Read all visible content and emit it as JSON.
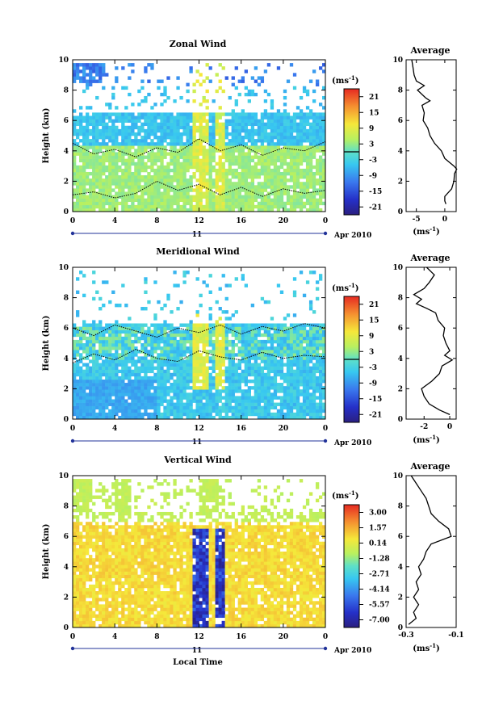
{
  "chart_data": [
    {
      "type": "heatmap",
      "title": "Zonal Wind",
      "ylabel": "Height (km)",
      "xlim": [
        0,
        24
      ],
      "ylim": [
        0,
        10
      ],
      "x_ticks": [
        "0",
        "4",
        "8",
        "12",
        "16",
        "20",
        "0"
      ],
      "y_ticks": [
        "0",
        "2",
        "4",
        "6",
        "8",
        "10"
      ],
      "date_label": "11",
      "date_suffix": "Apr 2010",
      "colorbar": {
        "unit": "(ms",
        "unit_sup": "-1",
        "unit_close": ")",
        "ticks": [
          "21",
          "15",
          "9",
          "3",
          "-3",
          "-9",
          "-15",
          "-21"
        ],
        "range": [
          -24,
          24
        ],
        "zero_line": true
      },
      "average_profile": {
        "title": "Average",
        "xlabel": "(ms",
        "xlabel_sup": "-1",
        "xlabel_close": ")",
        "x_ticks": [
          "-5",
          "0"
        ],
        "xlim": [
          -6.8,
          2.0
        ],
        "heights": [
          0.5,
          0.7,
          1.0,
          1.5,
          2.0,
          2.5,
          2.8,
          3.0,
          3.5,
          4.0,
          4.5,
          5.0,
          5.5,
          6.0,
          6.5,
          7.0,
          7.3,
          7.5,
          8.0,
          8.3,
          8.6,
          9.0,
          9.5,
          10.0
        ],
        "values": [
          0.2,
          0.0,
          0.0,
          1.2,
          1.6,
          1.7,
          2.1,
          1.6,
          0.0,
          -0.6,
          -1.8,
          -2.6,
          -3.0,
          -3.8,
          -3.6,
          -4.0,
          -2.6,
          -3.4,
          -4.8,
          -3.6,
          -5.0,
          -5.4,
          -5.6,
          -5.8
        ]
      },
      "contours": [
        {
          "level": 0,
          "heights": [
            4.5,
            3.8,
            4.1,
            3.6,
            4.2,
            3.9,
            4.8,
            4.0,
            4.4,
            3.7,
            4.2,
            4.0,
            4.6
          ]
        },
        {
          "level": 0,
          "heights": [
            1.1,
            1.3,
            0.9,
            1.2,
            2.0,
            1.4,
            1.8,
            1.1,
            1.6,
            1.0,
            1.5,
            1.2,
            1.4
          ]
        }
      ]
    },
    {
      "type": "heatmap",
      "title": "Meridional Wind",
      "ylabel": "Height (km)",
      "xlim": [
        0,
        24
      ],
      "ylim": [
        0,
        10
      ],
      "x_ticks": [
        "0",
        "4",
        "8",
        "12",
        "16",
        "20",
        "0"
      ],
      "y_ticks": [
        "0",
        "2",
        "4",
        "6",
        "8",
        "10"
      ],
      "date_label": "11",
      "date_suffix": "Apr 2010",
      "colorbar": {
        "unit": "(ms",
        "unit_sup": "-1",
        "unit_close": ")",
        "ticks": [
          "21",
          "15",
          "9",
          "3",
          "-3",
          "-9",
          "-15",
          "-21"
        ],
        "range": [
          -24,
          24
        ],
        "zero_line": true
      },
      "average_profile": {
        "title": "Average",
        "xlabel": "(ms",
        "xlabel_sup": "-1",
        "xlabel_close": ")",
        "x_ticks": [
          "-2",
          "0"
        ],
        "xlim": [
          -3.4,
          0.5
        ],
        "heights": [
          0.3,
          0.6,
          1.0,
          1.5,
          2.0,
          2.5,
          3.0,
          3.5,
          3.9,
          4.2,
          4.5,
          5.0,
          5.5,
          6.0,
          6.5,
          7.0,
          7.3,
          7.6,
          7.9,
          8.2,
          8.6,
          9.0,
          9.5,
          10.0
        ],
        "values": [
          0.0,
          -0.8,
          -1.6,
          -2.0,
          -2.2,
          -1.4,
          -0.8,
          -0.6,
          0.2,
          -0.4,
          0.0,
          -0.3,
          -0.5,
          -0.4,
          -0.9,
          -1.1,
          -1.8,
          -2.6,
          -2.2,
          -2.8,
          -2.0,
          -1.6,
          -1.2,
          -1.8
        ]
      },
      "contours": [
        {
          "level": 0,
          "heights": [
            6.0,
            5.5,
            6.2,
            5.8,
            5.4,
            6.0,
            5.7,
            6.2,
            5.6,
            6.1,
            5.8,
            6.3,
            6.0
          ]
        },
        {
          "level": 0,
          "heights": [
            3.7,
            4.3,
            3.9,
            4.6,
            4.0,
            3.8,
            4.5,
            4.1,
            3.9,
            4.4,
            4.0,
            4.2,
            4.1
          ]
        }
      ]
    },
    {
      "type": "heatmap",
      "title": "Vertical Wind",
      "ylabel": "Height (km)",
      "xlabel": "Local Time",
      "xlim": [
        0,
        24
      ],
      "ylim": [
        0,
        10
      ],
      "x_ticks": [
        "0",
        "4",
        "8",
        "12",
        "16",
        "20",
        "0"
      ],
      "y_ticks": [
        "0",
        "2",
        "4",
        "6",
        "8",
        "10"
      ],
      "date_label": "11",
      "date_suffix": "Apr 2010",
      "colorbar": {
        "unit": "(ms",
        "unit_sup": "-1",
        "unit_close": ")",
        "ticks": [
          "3.00",
          "1.57",
          "0.14",
          "-1.28",
          "-2.71",
          "-4.14",
          "-5.57",
          "-7.00"
        ],
        "range": [
          -7.7,
          3.7
        ],
        "zero_line": false
      },
      "average_profile": {
        "title": "Average",
        "xlabel": "(ms",
        "xlabel_sup": "-1",
        "xlabel_close": ")",
        "x_ticks": [
          "-0.3",
          "-0.1"
        ],
        "xlim": [
          -0.3,
          -0.1
        ],
        "heights": [
          0.2,
          0.6,
          1.0,
          1.5,
          2.0,
          2.5,
          3.0,
          3.5,
          4.0,
          4.5,
          5.0,
          5.5,
          6.0,
          6.5,
          7.0,
          7.5,
          8.0,
          8.5,
          9.0,
          9.5,
          10.0
        ],
        "values": [
          -0.29,
          -0.26,
          -0.27,
          -0.25,
          -0.27,
          -0.25,
          -0.26,
          -0.24,
          -0.25,
          -0.23,
          -0.22,
          -0.2,
          -0.12,
          -0.13,
          -0.17,
          -0.2,
          -0.21,
          -0.22,
          -0.24,
          -0.26,
          -0.28
        ]
      }
    }
  ]
}
